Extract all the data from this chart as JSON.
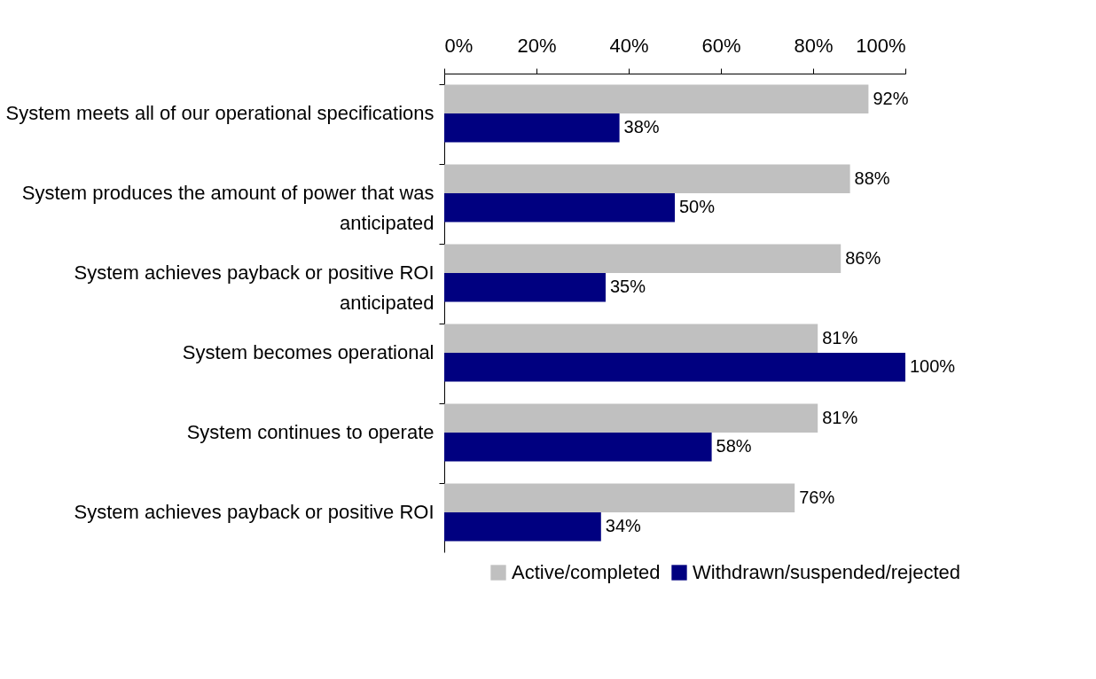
{
  "chart_data": {
    "type": "bar",
    "orientation": "horizontal",
    "categories": [
      "System meets all of our operational specifications",
      "System produces the amount of power that was anticipated",
      "System achieves payback or positive ROI anticipated",
      "System becomes operational",
      "System continues to operate",
      "System achieves payback or positive ROI"
    ],
    "series": [
      {
        "name": "Active/completed",
        "color": "#c0c0c0",
        "values": [
          92,
          88,
          86,
          81,
          81,
          76
        ],
        "value_labels": [
          "92%",
          "88%",
          "86%",
          "81%",
          "81%",
          "76%"
        ]
      },
      {
        "name": "Withdrawn/suspended/rejected",
        "color": "#000080",
        "values": [
          38,
          50,
          35,
          100,
          58,
          34
        ],
        "value_labels": [
          "38%",
          "50%",
          "35%",
          "100%",
          "58%",
          "34%"
        ]
      }
    ],
    "xlim": [
      0,
      100
    ],
    "xticks": [
      {
        "value": 0,
        "label": "0%"
      },
      {
        "value": 20,
        "label": "20%"
      },
      {
        "value": 40,
        "label": "40%"
      },
      {
        "value": 60,
        "label": "60%"
      },
      {
        "value": 80,
        "label": "80%"
      },
      {
        "value": 100,
        "label": "100%"
      }
    ],
    "grid": false,
    "legend": "bottom right"
  }
}
